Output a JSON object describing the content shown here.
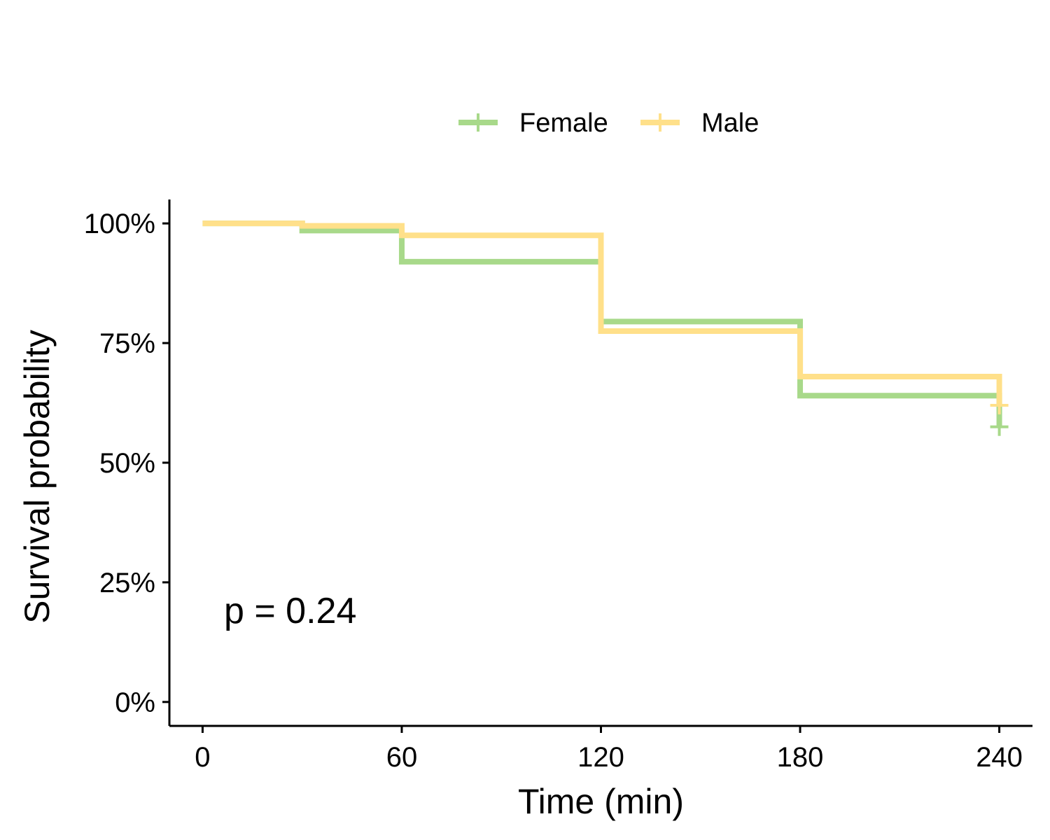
{
  "chart_data": {
    "type": "line",
    "subtype": "kaplan-meier step",
    "xlabel": "Time (min)",
    "ylabel": "Survival probability",
    "xlim": [
      -10,
      250
    ],
    "ylim": [
      -0.05,
      1.05
    ],
    "x_ticks": [
      0,
      60,
      120,
      180,
      240
    ],
    "x_tick_labels": [
      "0",
      "60",
      "120",
      "180",
      "240"
    ],
    "y_ticks": [
      0,
      0.25,
      0.5,
      0.75,
      1.0
    ],
    "y_tick_labels": [
      "0%",
      "25%",
      "50%",
      "75%",
      "100%"
    ],
    "legend_position": "top",
    "annotation": "p = 0.24",
    "grid": false,
    "series": [
      {
        "name": "Female",
        "color": "#A8D98A",
        "steps": [
          [
            0,
            1.0
          ],
          [
            30,
            0.985
          ],
          [
            60,
            0.92
          ],
          [
            120,
            0.795
          ],
          [
            180,
            0.64
          ],
          [
            240,
            0.575
          ]
        ],
        "censor": [
          [
            240,
            0.575
          ]
        ]
      },
      {
        "name": "Male",
        "color": "#FFE08A",
        "steps": [
          [
            0,
            1.0
          ],
          [
            30,
            0.995
          ],
          [
            60,
            0.975
          ],
          [
            120,
            0.775
          ],
          [
            180,
            0.68
          ],
          [
            240,
            0.62
          ]
        ],
        "censor": [
          [
            240,
            0.62
          ]
        ]
      }
    ]
  }
}
